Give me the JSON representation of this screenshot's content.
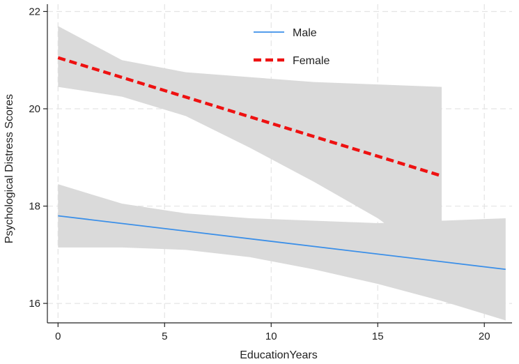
{
  "chart_data": {
    "type": "line",
    "xlabel": "EducationYears",
    "ylabel": "Psychological Distress Scores",
    "xlim": [
      -0.5,
      21.3
    ],
    "ylim": [
      15.6,
      22.15
    ],
    "x_ticks": [
      0,
      5,
      10,
      15,
      20
    ],
    "y_ticks": [
      16,
      18,
      20,
      22
    ],
    "grid": true,
    "legend_position": "top-center",
    "series": [
      {
        "name": "Male",
        "color": "#3b8fe8",
        "line_style": "solid",
        "x": [
          0,
          21
        ],
        "y": [
          17.8,
          16.7
        ],
        "ci_x": [
          0,
          3,
          6,
          9,
          12,
          15,
          18,
          21
        ],
        "ci_upper": [
          18.45,
          18.05,
          17.85,
          17.75,
          17.7,
          17.65,
          17.7,
          17.75
        ],
        "ci_lower": [
          17.15,
          17.15,
          17.1,
          16.95,
          16.7,
          16.4,
          16.05,
          15.65
        ]
      },
      {
        "name": "Female",
        "color": "#ee1111",
        "line_style": "dashed",
        "x": [
          0,
          18
        ],
        "y": [
          21.05,
          18.62
        ],
        "ci_x": [
          0,
          3,
          6,
          9,
          12,
          15,
          18
        ],
        "ci_upper": [
          21.7,
          21.0,
          20.75,
          20.65,
          20.55,
          20.5,
          20.45
        ],
        "ci_lower": [
          20.45,
          20.25,
          19.85,
          19.2,
          18.5,
          17.75,
          16.8
        ]
      }
    ]
  }
}
